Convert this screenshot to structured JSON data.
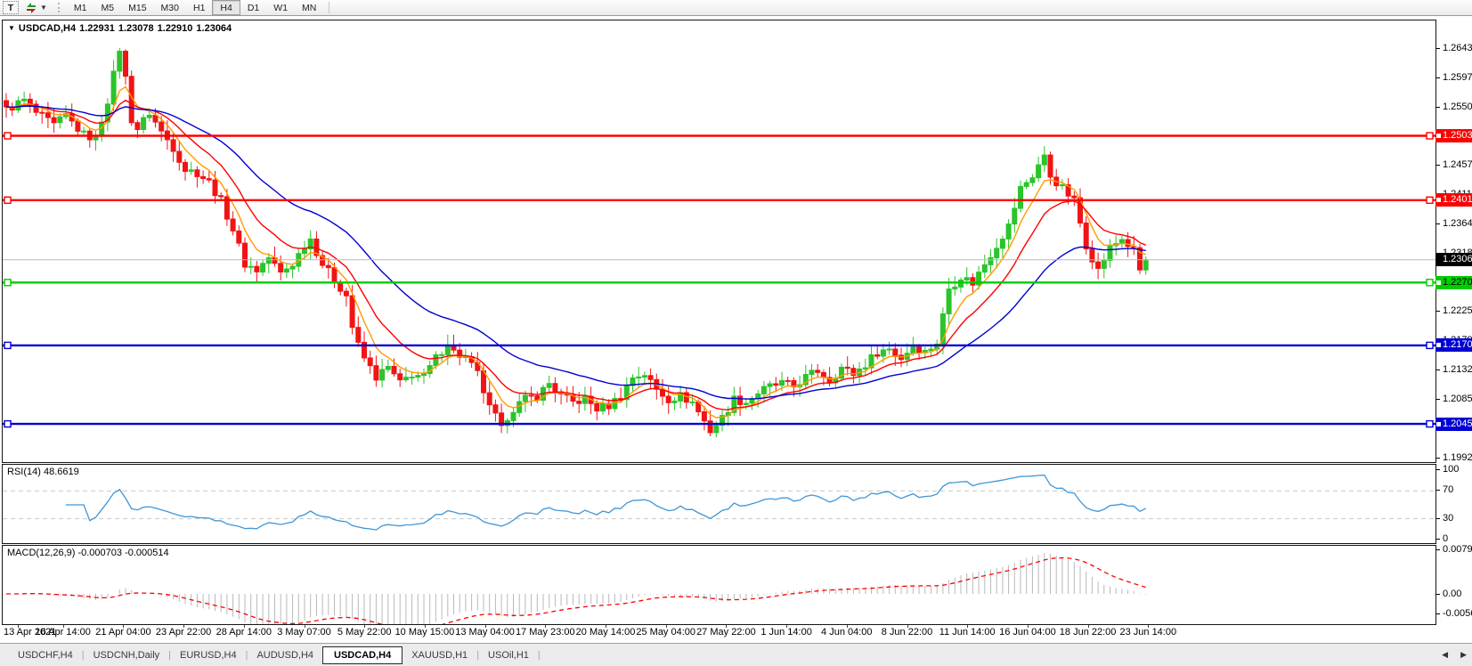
{
  "toolbar": {
    "text_tool_label": "T",
    "timeframes": [
      "M1",
      "M5",
      "M15",
      "M30",
      "H1",
      "H4",
      "D1",
      "W1",
      "MN"
    ],
    "active_timeframe": "H4"
  },
  "chart_header": {
    "symbol": "USDCAD,H4",
    "open": "1.22931",
    "high": "1.23078",
    "low": "1.22910",
    "close": "1.23064"
  },
  "price_axis": {
    "ticks": [
      {
        "label": "1.26430",
        "value": 1.2643
      },
      {
        "label": "1.25970",
        "value": 1.2597
      },
      {
        "label": "1.25500",
        "value": 1.255
      },
      {
        "label": "1.24570",
        "value": 1.2457
      },
      {
        "label": "1.24110",
        "value": 1.2411
      },
      {
        "label": "1.23640",
        "value": 1.2364
      },
      {
        "label": "1.23180",
        "value": 1.2318
      },
      {
        "label": "1.22250",
        "value": 1.2225
      },
      {
        "label": "1.21790",
        "value": 1.2179
      },
      {
        "label": "1.21320",
        "value": 1.2132
      },
      {
        "label": "1.20850",
        "value": 1.2085
      },
      {
        "label": "1.20390",
        "value": 1.2039
      },
      {
        "label": "1.19920",
        "value": 1.1992
      }
    ]
  },
  "levels": [
    {
      "label": "1.25036",
      "price": 1.25036,
      "color": "#ff0000",
      "text": "#ffffff"
    },
    {
      "label": "1.24013",
      "price": 1.24013,
      "color": "#ff0000",
      "text": "#ffffff"
    },
    {
      "label": "1.22704",
      "price": 1.22704,
      "color": "#00cc00",
      "text": "#000000"
    },
    {
      "label": "1.21704",
      "price": 1.21704,
      "color": "#0000d2",
      "text": "#ffffff"
    },
    {
      "label": "1.20456",
      "price": 1.20456,
      "color": "#0000d2",
      "text": "#ffffff"
    }
  ],
  "current_price": {
    "label": "1.23064",
    "price": 1.23064,
    "bg": "#000000",
    "text": "#ffffff"
  },
  "time_axis": {
    "labels": [
      "13 Apr 2021",
      "16 Apr 14:00",
      "21 Apr 04:00",
      "23 Apr 22:00",
      "28 Apr 14:00",
      "3 May 07:00",
      "5 May 22:00",
      "10 May 15:00",
      "13 May 04:00",
      "17 May 23:00",
      "20 May 14:00",
      "25 May 04:00",
      "27 May 22:00",
      "1 Jun 14:00",
      "4 Jun 04:00",
      "8 Jun 22:00",
      "11 Jun 14:00",
      "16 Jun 04:00",
      "18 Jun 22:00",
      "23 Jun 14:00"
    ]
  },
  "indicators": {
    "rsi": {
      "label": "RSI(14) 48.6619",
      "value": 48.6619,
      "period": 14,
      "levels": [
        70,
        30
      ],
      "ticks": [
        {
          "label": "100",
          "v": 100
        },
        {
          "label": "70",
          "v": 70
        },
        {
          "label": "30",
          "v": 30
        },
        {
          "label": "0",
          "v": 0
        }
      ]
    },
    "macd": {
      "label": "MACD(12,26,9) -0.000703 -0.000514",
      "main_value": -0.000703,
      "signal_value": -0.000514,
      "fast": 12,
      "slow": 26,
      "signal_period": 9,
      "ticks": [
        {
          "label": "0.007959",
          "y": 617
        },
        {
          "label": "0.00",
          "y": 667
        },
        {
          "label": "-0.005663",
          "y": 689
        }
      ]
    }
  },
  "tabs": {
    "items": [
      {
        "label": "USDCHF,H4",
        "active": false
      },
      {
        "label": "USDCNH,Daily",
        "active": false
      },
      {
        "label": "EURUSD,H4",
        "active": false
      },
      {
        "label": "AUDUSD,H4",
        "active": false
      },
      {
        "label": "USDCAD,H4",
        "active": true
      },
      {
        "label": "XAUUSD,H1",
        "active": false
      },
      {
        "label": "USOil,H1",
        "active": false
      }
    ],
    "scroll_left_icon": "◀",
    "scroll_right_icon": "▶"
  },
  "colors": {
    "candle_up": "#2bc42b",
    "candle_down": "#f01414",
    "ma_fast": "#ff9c00",
    "ma_mid": "#ff0000",
    "ma_slow": "#0000d2",
    "rsi_line": "#3f96d6",
    "rsi_level_dash": "#c8c8c8",
    "macd_hist": "#b9b9b9",
    "macd_signal": "#ff0000",
    "current_line": "#b8b8b8"
  },
  "chart_data": {
    "type": "candlestick",
    "symbol": "USDCAD",
    "timeframe": "H4",
    "title": "USDCAD,H4",
    "x_range": [
      "13 Apr 2021",
      "23 Jun 2021 14:00"
    ],
    "price_axis_range": [
      1.1992,
      1.2643
    ],
    "candle_count": 192,
    "ohlc_display": {
      "open": 1.22931,
      "high": 1.23078,
      "low": 1.2291,
      "close": 1.23064
    },
    "last_close": 1.23064,
    "close_anchors": [
      [
        0,
        1.2545
      ],
      [
        3,
        1.256
      ],
      [
        5,
        1.254
      ],
      [
        8,
        1.252
      ],
      [
        10,
        1.2535
      ],
      [
        13,
        1.2505
      ],
      [
        15,
        1.25
      ],
      [
        17,
        1.256
      ],
      [
        19,
        1.264
      ],
      [
        20,
        1.2595
      ],
      [
        21,
        1.253
      ],
      [
        22,
        1.2515
      ],
      [
        24,
        1.254
      ],
      [
        26,
        1.251
      ],
      [
        28,
        1.2485
      ],
      [
        30,
        1.245
      ],
      [
        32,
        1.2445
      ],
      [
        34,
        1.243
      ],
      [
        36,
        1.24
      ],
      [
        38,
        1.2355
      ],
      [
        40,
        1.23
      ],
      [
        42,
        1.229
      ],
      [
        44,
        1.231
      ],
      [
        46,
        1.2285
      ],
      [
        48,
        1.23
      ],
      [
        50,
        1.233
      ],
      [
        51,
        1.234
      ],
      [
        53,
        1.23
      ],
      [
        55,
        1.2275
      ],
      [
        57,
        1.225
      ],
      [
        58,
        1.22
      ],
      [
        59,
        1.217
      ],
      [
        60,
        1.215
      ],
      [
        62,
        1.212
      ],
      [
        64,
        1.2135
      ],
      [
        66,
        1.211
      ],
      [
        68,
        1.2125
      ],
      [
        70,
        1.212
      ],
      [
        72,
        1.215
      ],
      [
        74,
        1.2175
      ],
      [
        75,
        1.216
      ],
      [
        77,
        1.215
      ],
      [
        79,
        1.2125
      ],
      [
        81,
        1.207
      ],
      [
        83,
        1.2045
      ],
      [
        85,
        1.207
      ],
      [
        87,
        1.2085
      ],
      [
        89,
        1.209
      ],
      [
        91,
        1.211
      ],
      [
        93,
        1.209
      ],
      [
        95,
        1.208
      ],
      [
        97,
        1.2085
      ],
      [
        99,
        1.207
      ],
      [
        101,
        1.2075
      ],
      [
        103,
        1.209
      ],
      [
        105,
        1.212
      ],
      [
        107,
        1.2125
      ],
      [
        109,
        1.21
      ],
      [
        111,
        1.2085
      ],
      [
        113,
        1.209
      ],
      [
        115,
        1.208
      ],
      [
        117,
        1.205
      ],
      [
        118,
        1.2035
      ],
      [
        120,
        1.2055
      ],
      [
        122,
        1.2085
      ],
      [
        124,
        1.208
      ],
      [
        126,
        1.2095
      ],
      [
        128,
        1.2105
      ],
      [
        130,
        1.211
      ],
      [
        132,
        1.2105
      ],
      [
        134,
        1.212
      ],
      [
        136,
        1.213
      ],
      [
        138,
        1.2115
      ],
      [
        140,
        1.2135
      ],
      [
        142,
        1.2125
      ],
      [
        144,
        1.214
      ],
      [
        146,
        1.216
      ],
      [
        148,
        1.2165
      ],
      [
        150,
        1.215
      ],
      [
        152,
        1.217
      ],
      [
        154,
        1.216
      ],
      [
        156,
        1.2175
      ],
      [
        158,
        1.226
      ],
      [
        160,
        1.228
      ],
      [
        162,
        1.227
      ],
      [
        164,
        1.23
      ],
      [
        166,
        1.233
      ],
      [
        168,
        1.236
      ],
      [
        170,
        1.242
      ],
      [
        172,
        1.244
      ],
      [
        174,
        1.2475
      ],
      [
        175,
        1.244
      ],
      [
        177,
        1.242
      ],
      [
        179,
        1.24
      ],
      [
        181,
        1.233
      ],
      [
        183,
        1.229
      ],
      [
        185,
        1.2325
      ],
      [
        187,
        1.234
      ],
      [
        189,
        1.232
      ],
      [
        190,
        1.229
      ],
      [
        191,
        1.23064
      ]
    ],
    "extremes": {
      "high": {
        "index": 19,
        "price": 1.2643
      },
      "rally_high": {
        "index": 174,
        "price": 1.2487
      },
      "low1": {
        "index": 83,
        "price": 1.2031
      },
      "low2": {
        "index": 118,
        "price": 1.2026
      }
    },
    "moving_averages": [
      {
        "period": 6,
        "color": "#ff9c00",
        "name": "fast"
      },
      {
        "period": 13,
        "color": "#ff0000",
        "name": "mid"
      },
      {
        "period": 32,
        "color": "#0000d2",
        "name": "slow"
      }
    ],
    "horizontal_lines": [
      {
        "price": 1.25036,
        "color": "#ff0000"
      },
      {
        "price": 1.24013,
        "color": "#ff0000"
      },
      {
        "price": 1.23064,
        "color": "#b8b8b8",
        "style": "current"
      },
      {
        "price": 1.22704,
        "color": "#00cc00"
      },
      {
        "price": 1.21704,
        "color": "#0000d2"
      },
      {
        "price": 1.20456,
        "color": "#0000d2"
      }
    ],
    "rsi_value": 48.6619,
    "macd_values": [
      -0.000703,
      -0.000514
    ]
  }
}
